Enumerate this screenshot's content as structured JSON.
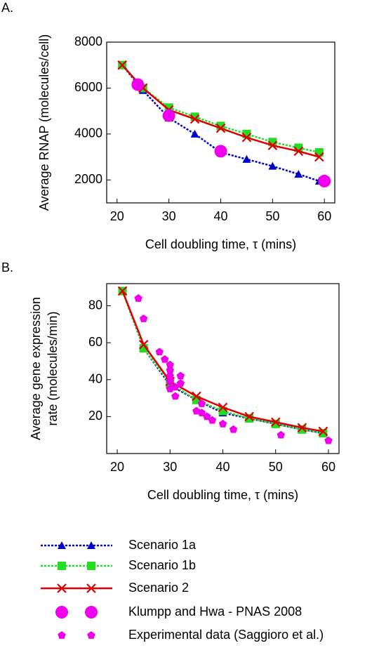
{
  "chart_data": [
    {
      "type": "line",
      "panel_label": "A.",
      "xlabel": "Cell doubling time, τ (mins)",
      "ylabel": [
        "Average RNAP (molecules/cell)"
      ],
      "xlim": [
        18,
        62
      ],
      "xticks": [
        20,
        30,
        40,
        50,
        60
      ],
      "ylim": [
        1000,
        8000
      ],
      "yticks": [
        2000,
        4000,
        6000,
        8000
      ],
      "series": [
        {
          "name": "Scenario 1a",
          "color": "#0000cc",
          "marker": "triangle",
          "linestyle": "dotted",
          "x": [
            21,
            25,
            30,
            35,
            40,
            45,
            50,
            55,
            59
          ],
          "values": [
            7000,
            5900,
            4700,
            4000,
            3200,
            2900,
            2600,
            2250,
            1950
          ]
        },
        {
          "name": "Scenario 1b",
          "color": "#22dd22",
          "marker": "square",
          "linestyle": "dotted",
          "x": [
            21,
            25,
            30,
            35,
            40,
            45,
            50,
            55,
            59
          ],
          "values": [
            7000,
            6000,
            5150,
            4750,
            4350,
            4000,
            3650,
            3400,
            3200
          ]
        },
        {
          "name": "Scenario 2",
          "color": "#dd0000",
          "marker": "x",
          "linestyle": "solid",
          "x": [
            21,
            25,
            30,
            35,
            40,
            45,
            50,
            55,
            59
          ],
          "values": [
            7000,
            6000,
            5050,
            4650,
            4250,
            3850,
            3500,
            3250,
            3000
          ]
        },
        {
          "name": "Klumpp and Hwa - PNAS 2008",
          "color": "#ee00ee",
          "marker": "circle",
          "linestyle": "none",
          "x": [
            24,
            30,
            40,
            60
          ],
          "values": [
            6150,
            4800,
            3250,
            1950
          ]
        }
      ]
    },
    {
      "type": "line",
      "panel_label": "B.",
      "xlabel": "Cell doubling time, τ (mins)",
      "ylabel": [
        "Average gene expression",
        "rate (molecules/min)"
      ],
      "xlim": [
        18,
        62
      ],
      "xticks": [
        20,
        30,
        40,
        50,
        60
      ],
      "ylim": [
        0,
        92
      ],
      "yticks": [
        20,
        40,
        60,
        80
      ],
      "series": [
        {
          "color": "#0000cc",
          "marker": "triangle",
          "linestyle": "dotted",
          "x": [
            21,
            25,
            30,
            35,
            40,
            45,
            50,
            55,
            59
          ],
          "values": [
            88,
            57,
            37,
            29,
            22,
            19,
            16,
            13,
            11
          ]
        },
        {
          "color": "#22dd22",
          "marker": "square",
          "linestyle": "dotted",
          "x": [
            21,
            25,
            30,
            35,
            40,
            45,
            50,
            55,
            59
          ],
          "values": [
            88,
            57,
            38,
            29,
            23,
            19,
            16,
            13,
            11
          ]
        },
        {
          "color": "#dd0000",
          "marker": "x",
          "linestyle": "solid",
          "x": [
            21,
            25,
            30,
            35,
            40,
            45,
            50,
            55,
            59
          ],
          "values": [
            88,
            59,
            39,
            31,
            25,
            20,
            17,
            14,
            12
          ]
        },
        {
          "name": "Experimental data (Saggioro et al.)",
          "color": "#ee00ee",
          "marker": "pentagon",
          "linestyle": "none",
          "x": [
            24,
            25,
            28,
            29,
            30,
            30,
            30,
            30,
            30,
            31,
            31,
            32,
            32,
            35,
            36,
            36,
            37,
            38,
            40,
            42,
            51,
            60
          ],
          "values": [
            84,
            73,
            55,
            51,
            48,
            45,
            42,
            39,
            35,
            31,
            36,
            42,
            38,
            23,
            27,
            22,
            20,
            18,
            16,
            13,
            10,
            7
          ]
        }
      ]
    }
  ]
}
